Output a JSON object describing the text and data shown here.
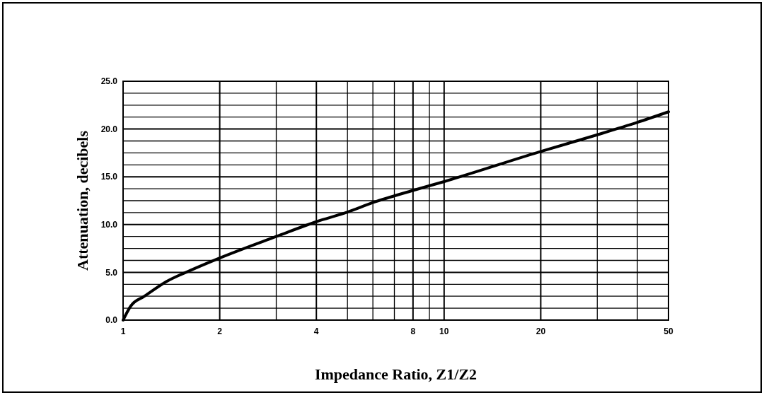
{
  "chart_data": {
    "type": "line",
    "xlabel": "Impedance Ratio, Z1/Z2",
    "ylabel": "Attenuation, decibels",
    "log": "x",
    "x": [
      1,
      1.058,
      1.166,
      1.367,
      1.63,
      2,
      3,
      4,
      5,
      6,
      8,
      10,
      20,
      30,
      40,
      50
    ],
    "series": [
      {
        "color": "#000000",
        "values": [
          0,
          1.5,
          2.5,
          4.05,
          5.24,
          6.5,
          8.75,
          10.3,
          11.3,
          12.3,
          13.57,
          14.5,
          17.65,
          19.4,
          20.7,
          21.8
        ]
      }
    ],
    "xlim": [
      1,
      50
    ],
    "xticks": [
      1,
      2,
      {
        "value": 3,
        "label": null
      },
      4,
      {
        "value": 5,
        "label": null
      },
      {
        "value": 6,
        "label": null
      },
      {
        "value": 7,
        "label": null
      },
      8,
      {
        "value": 9,
        "label": null
      },
      10,
      20,
      {
        "value": 30,
        "label": null
      },
      {
        "value": 40,
        "label": null
      },
      50
    ],
    "ylim": [
      0,
      25
    ],
    "yticks": [
      {
        "value": 0,
        "label": "0.0"
      },
      {
        "value": 1.25,
        "label": null
      },
      {
        "value": 2.5,
        "label": null
      },
      {
        "value": 3.75,
        "label": null
      },
      {
        "value": 5,
        "label": "5.0"
      },
      {
        "value": 6.25,
        "label": null
      },
      {
        "value": 7.5,
        "label": null
      },
      {
        "value": 8.75,
        "label": null
      },
      {
        "value": 10,
        "label": "10.0"
      },
      {
        "value": 11.25,
        "label": null
      },
      {
        "value": 12.5,
        "label": null
      },
      {
        "value": 13.75,
        "label": null
      },
      {
        "value": 15,
        "label": "15.0"
      },
      {
        "value": 16.25,
        "label": null
      },
      {
        "value": 17.5,
        "label": null
      },
      {
        "value": 18.75,
        "label": null
      },
      {
        "value": 20,
        "label": "20.0"
      },
      {
        "value": 21.25,
        "label": null
      },
      {
        "value": 22.5,
        "label": null
      },
      {
        "value": 23.75,
        "label": null
      },
      {
        "value": 25,
        "label": "25.0"
      }
    ],
    "grid": true,
    "marker": "none",
    "line_style": "solid"
  }
}
